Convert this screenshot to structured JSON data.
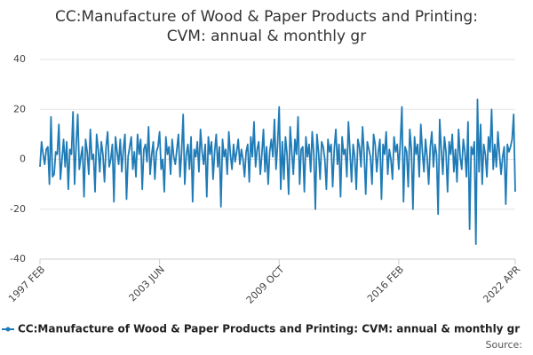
{
  "chart_data": {
    "type": "line",
    "title": [
      "CC:Manufacture of Wood & Paper Products and Printing:",
      "CVM: annual & monthly gr"
    ],
    "source": "Source:",
    "categories": [
      "1997 FEB",
      null,
      null,
      null,
      null,
      null,
      null,
      null,
      null,
      null,
      null,
      null,
      null,
      null,
      null,
      null,
      null,
      null,
      null,
      null,
      null,
      null,
      null,
      null,
      null,
      null,
      null,
      null,
      null,
      null,
      null,
      null,
      null,
      null,
      null,
      null,
      null,
      null,
      null,
      null,
      null,
      null,
      null,
      null,
      null,
      null,
      null,
      null,
      null,
      null,
      null,
      null,
      null,
      null,
      null,
      null,
      null,
      null,
      null,
      null,
      null,
      null,
      null,
      null,
      null,
      null,
      null,
      null,
      null,
      null,
      null,
      null,
      null,
      null,
      null,
      null,
      "2003 JUN",
      null,
      null,
      null,
      null,
      null,
      null,
      null,
      null,
      null,
      null,
      null,
      null,
      null,
      null,
      null,
      null,
      null,
      null,
      null,
      null,
      null,
      null,
      null,
      null,
      null,
      null,
      null,
      null,
      null,
      null,
      null,
      null,
      null,
      null,
      null,
      null,
      null,
      null,
      null,
      null,
      null,
      null,
      null,
      null,
      null,
      null,
      null,
      null,
      null,
      null,
      null,
      null,
      null,
      null,
      null,
      null,
      null,
      null,
      null,
      null,
      null,
      null,
      null,
      null,
      null,
      null,
      null,
      null,
      null,
      null,
      null,
      null,
      null,
      null,
      null,
      "2009 OCT",
      null,
      null,
      null,
      null,
      null,
      null,
      null,
      null,
      null,
      null,
      null,
      null,
      null,
      null,
      null,
      null,
      null,
      null,
      null,
      null,
      null,
      null,
      null,
      null,
      null,
      null,
      null,
      null,
      null,
      null,
      null,
      null,
      null,
      null,
      null,
      null,
      null,
      null,
      null,
      null,
      null,
      null,
      null,
      null,
      null,
      null,
      null,
      null,
      null,
      null,
      null,
      null,
      null,
      null,
      null,
      null,
      null,
      null,
      null,
      null,
      null,
      null,
      null,
      null,
      null,
      null,
      null,
      null,
      null,
      null,
      null,
      null,
      null,
      null,
      null,
      "2016 FEB",
      null,
      null,
      null,
      null,
      null,
      null,
      null,
      null,
      null,
      null,
      null,
      null,
      null,
      null,
      null,
      null,
      null,
      null,
      null,
      null,
      null,
      null,
      null,
      null,
      null,
      null,
      null,
      null,
      null,
      null,
      null,
      null,
      null,
      null,
      null,
      null,
      null,
      null,
      null,
      null,
      null,
      null,
      null,
      null,
      null,
      null,
      null,
      null,
      null,
      null,
      null,
      null,
      null,
      null,
      null,
      null,
      null,
      null,
      null,
      null,
      null,
      null,
      null,
      null,
      null,
      null,
      null,
      null,
      null,
      null,
      null,
      null,
      null,
      "2022 APR"
    ],
    "series": [
      {
        "name": "CC:Manufacture of Wood & Paper Products and Printing: CVM: annual & monthly gr",
        "color": "#1f7bb6",
        "values": [
          -3,
          7,
          2,
          -2,
          4,
          5,
          -10,
          17,
          -7,
          -6,
          3,
          2,
          14,
          -8,
          0,
          8,
          -3,
          7,
          -12,
          4,
          2,
          19,
          -10,
          6,
          18,
          -4,
          1,
          5,
          -15,
          8,
          3,
          -6,
          12,
          0,
          2,
          -13,
          10,
          4,
          -5,
          7,
          2,
          -9,
          5,
          11,
          -3,
          0,
          6,
          -17,
          9,
          3,
          -2,
          8,
          -5,
          4,
          10,
          -16,
          1,
          5,
          9,
          -4,
          3,
          -7,
          10,
          2,
          8,
          -12,
          4,
          6,
          -1,
          13,
          -6,
          2,
          7,
          -8,
          3,
          5,
          11,
          -4,
          0,
          -13,
          9,
          2,
          5,
          -6,
          8,
          1,
          -2,
          4,
          10,
          -7,
          3,
          18,
          -10,
          2,
          6,
          -4,
          9,
          -17,
          4,
          1,
          7,
          -5,
          12,
          3,
          -2,
          6,
          -15,
          9,
          2,
          7,
          -8,
          3,
          10,
          -3,
          5,
          -19,
          8,
          1,
          4,
          -6,
          11,
          2,
          -4,
          6,
          -1,
          3,
          8,
          -2,
          4,
          0,
          -7,
          3,
          6,
          -9,
          9,
          1,
          15,
          -3,
          4,
          7,
          -6,
          2,
          12,
          -5,
          5,
          -10,
          3,
          8,
          1,
          16,
          -4,
          6,
          21,
          -12,
          7,
          -8,
          9,
          2,
          -14,
          13,
          3,
          -6,
          8,
          2,
          17,
          -10,
          4,
          5,
          -13,
          9,
          1,
          6,
          -5,
          11,
          2,
          -20,
          10,
          3,
          -8,
          7,
          5,
          0,
          -12,
          8,
          3,
          6,
          -11,
          4,
          12,
          -2,
          6,
          -15,
          9,
          2,
          4,
          -7,
          15,
          3,
          -9,
          6,
          1,
          -12,
          8,
          5,
          -3,
          13,
          2,
          -14,
          7,
          4,
          1,
          -10,
          10,
          6,
          -5,
          3,
          8,
          -16,
          6,
          2,
          11,
          -6,
          4,
          0,
          -8,
          9,
          3,
          6,
          -4,
          7,
          21,
          -17,
          5,
          3,
          -11,
          12,
          4,
          -20,
          9,
          2,
          6,
          -7,
          14,
          3,
          -5,
          8,
          1,
          -10,
          5,
          11,
          -3,
          6,
          2,
          -22,
          16,
          4,
          -6,
          9,
          3,
          -13,
          7,
          2,
          10,
          -5,
          4,
          -9,
          12,
          1,
          -4,
          8,
          3,
          -7,
          15,
          -28,
          5,
          2,
          7,
          -34,
          24,
          -5,
          14,
          -10,
          6,
          2,
          -7,
          9,
          3,
          20,
          -4,
          6,
          -3,
          11,
          2,
          -6,
          1,
          5,
          -18,
          6,
          3,
          5,
          8,
          18,
          -13
        ]
      }
    ],
    "ylim": [
      -40,
      40
    ],
    "yticks": [
      -40,
      -20,
      0,
      20,
      40
    ],
    "grid": true
  }
}
